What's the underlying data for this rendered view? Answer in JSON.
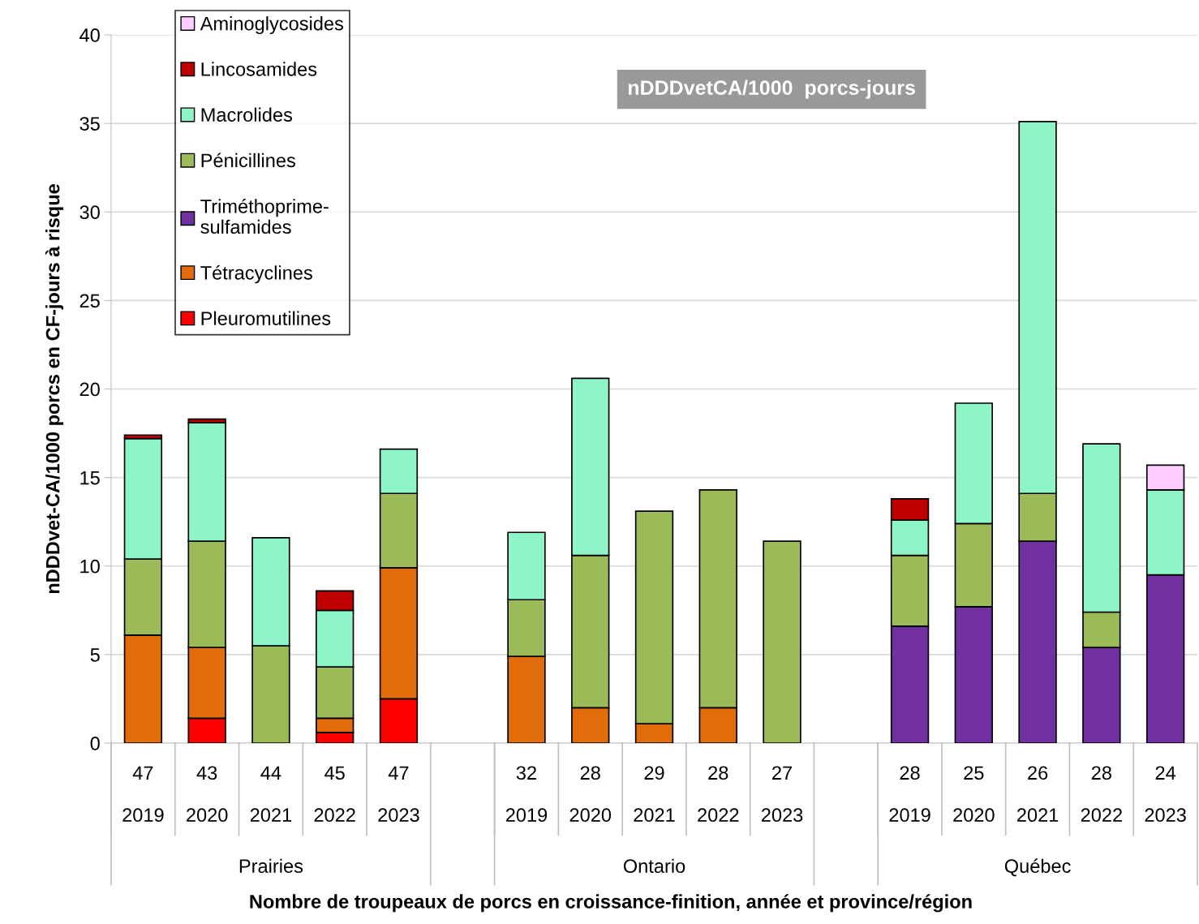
{
  "chart_data": {
    "type": "bar",
    "stacked": true,
    "title": "nDDDvetCA/1000  porcs-jours",
    "ylabel": "nDDDvet-CA/1000 porcs en CF-jours à risque",
    "categories": [
      "47\n2019",
      "43\n2020",
      "44\n2021",
      "45\n2022",
      "47\n2023",
      null,
      "32\n2019",
      "28\n2020",
      "29\n2021",
      "28\n2022",
      "27\n2023",
      null,
      "28\n2019",
      "25\n2020",
      "26\n2021",
      "28\n2022",
      "24\n2023"
    ],
    "annotations": [
      "Prairies",
      "Ontario",
      "Québec",
      "Nombre de troupeaux de porcs en croissance-finition, année et province/région"
    ],
    "series": [
      {
        "name": "Pleuromutilines",
        "color": "#ff0000",
        "values": [
          null,
          1.4,
          null,
          0.6,
          2.5,
          null,
          null,
          null,
          null,
          null,
          null,
          null,
          null,
          null,
          null,
          null,
          null
        ]
      },
      {
        "name": "Tétracyclines",
        "color": "#e36c0a",
        "values": [
          6.1,
          4.0,
          null,
          0.8,
          7.4,
          null,
          4.9,
          2.0,
          1.1,
          2.0,
          null,
          null,
          null,
          null,
          null,
          null,
          null
        ]
      },
      {
        "name": "Triméthoprime-\nsulfamides",
        "color": "#7030a0",
        "values": [
          null,
          null,
          null,
          null,
          null,
          null,
          null,
          null,
          null,
          null,
          null,
          null,
          6.6,
          7.7,
          11.4,
          5.4,
          9.5
        ]
      },
      {
        "name": "Pénicillines",
        "color": "#9bbb59",
        "values": [
          4.3,
          6.0,
          5.5,
          2.9,
          4.2,
          null,
          3.2,
          8.6,
          12.0,
          12.3,
          11.4,
          null,
          4.0,
          4.7,
          2.7,
          2.0,
          null
        ]
      },
      {
        "name": "Macrolides",
        "color": "#8ef5c8",
        "values": [
          6.8,
          6.7,
          6.1,
          3.2,
          2.5,
          null,
          3.8,
          10.0,
          null,
          null,
          null,
          null,
          2.0,
          6.8,
          21.0,
          9.5,
          4.8
        ]
      },
      {
        "name": "Lincosamides",
        "color": "#c00000",
        "values": [
          0.2,
          0.2,
          null,
          1.1,
          null,
          null,
          null,
          null,
          null,
          null,
          null,
          null,
          1.2,
          null,
          null,
          null,
          null
        ]
      },
      {
        "name": "Aminoglycosides",
        "color": "#ffccff",
        "values": [
          null,
          null,
          null,
          null,
          null,
          null,
          null,
          null,
          null,
          null,
          null,
          null,
          null,
          null,
          null,
          null,
          1.4
        ]
      }
    ],
    "ylim": [
      0,
      40
    ],
    "yticks": [
      0,
      5,
      10,
      15,
      20,
      25,
      30,
      35,
      40
    ],
    "grid": "y",
    "legend": "top left"
  }
}
